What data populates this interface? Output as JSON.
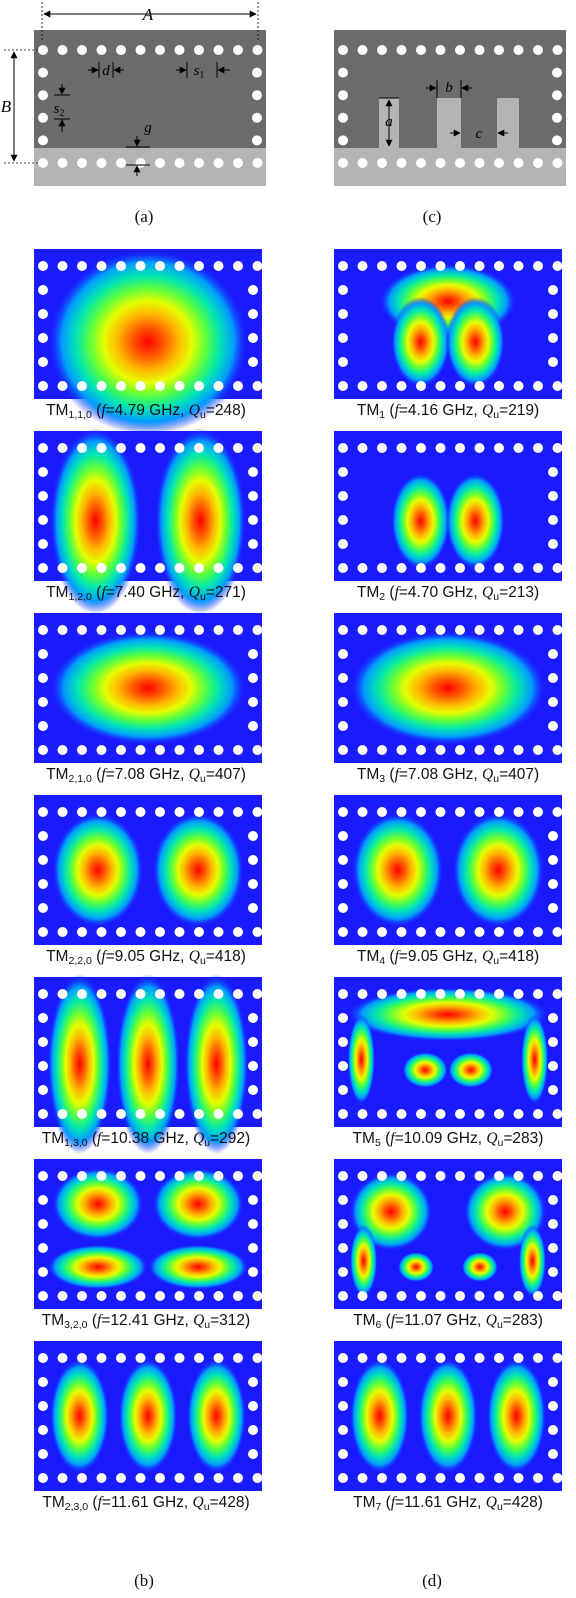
{
  "schematics": {
    "a": {
      "panel_label": "(a)",
      "A": "A",
      "B": "B",
      "d": "d",
      "s1": "s",
      "s1_sub": "1",
      "s2": "s",
      "s2_sub": "2",
      "g": "g"
    },
    "c": {
      "panel_label": "(c)",
      "a": "a",
      "b": "b",
      "c": "c"
    }
  },
  "colors": {
    "field_bg": "#1a1aff",
    "metal_dark": "#6b6b6b",
    "metal_light": "#b4b4b4",
    "via": "#ffffff"
  },
  "modes_left": [
    {
      "name": "TM",
      "sub": "1,1,0",
      "f": "4.79 GHz",
      "q": "248",
      "pattern": "dome"
    },
    {
      "name": "TM",
      "sub": "1,2,0",
      "f": "7.40 GHz",
      "q": "271",
      "pattern": "two-arches"
    },
    {
      "name": "TM",
      "sub": "2,1,0",
      "f": "7.08 GHz",
      "q": "407",
      "pattern": "single-ellipse"
    },
    {
      "name": "TM",
      "sub": "2,2,0",
      "f": "9.05 GHz",
      "q": "418",
      "pattern": "two-circles"
    },
    {
      "name": "TM",
      "sub": "1,3,0",
      "f": "10.38 GHz",
      "q": "292",
      "pattern": "three-arches"
    },
    {
      "name": "TM",
      "sub": "3,2,0",
      "f": "12.41 GHz",
      "q": "312",
      "pattern": "four-lobes"
    },
    {
      "name": "TM",
      "sub": "2,3,0",
      "f": "11.61 GHz",
      "q": "428",
      "pattern": "three-ovals"
    }
  ],
  "modes_right": [
    {
      "name": "TM",
      "sub": "1",
      "f": "4.16 GHz",
      "q": "219",
      "pattern": "posts-two"
    },
    {
      "name": "TM",
      "sub": "2",
      "f": "4.70 GHz",
      "q": "213",
      "pattern": "posts-two-b"
    },
    {
      "name": "TM",
      "sub": "3",
      "f": "7.08 GHz",
      "q": "407",
      "pattern": "single-ellipse"
    },
    {
      "name": "TM",
      "sub": "4",
      "f": "9.05 GHz",
      "q": "418",
      "pattern": "two-circles"
    },
    {
      "name": "TM",
      "sub": "5",
      "f": "10.09 GHz",
      "q": "283",
      "pattern": "bridge"
    },
    {
      "name": "TM",
      "sub": "6",
      "f": "11.07 GHz",
      "q": "283",
      "pattern": "hooks"
    },
    {
      "name": "TM",
      "sub": "7",
      "f": "11.61 GHz",
      "q": "428",
      "pattern": "three-ovals"
    }
  ],
  "bottom_labels": {
    "left": "(b)",
    "right": "(d)"
  },
  "caption_parts": {
    "open": " (",
    "f_label": "f",
    "eq": "=",
    "sep": ", ",
    "q_label": "Q",
    "q_sub": "u",
    "close": ")"
  }
}
